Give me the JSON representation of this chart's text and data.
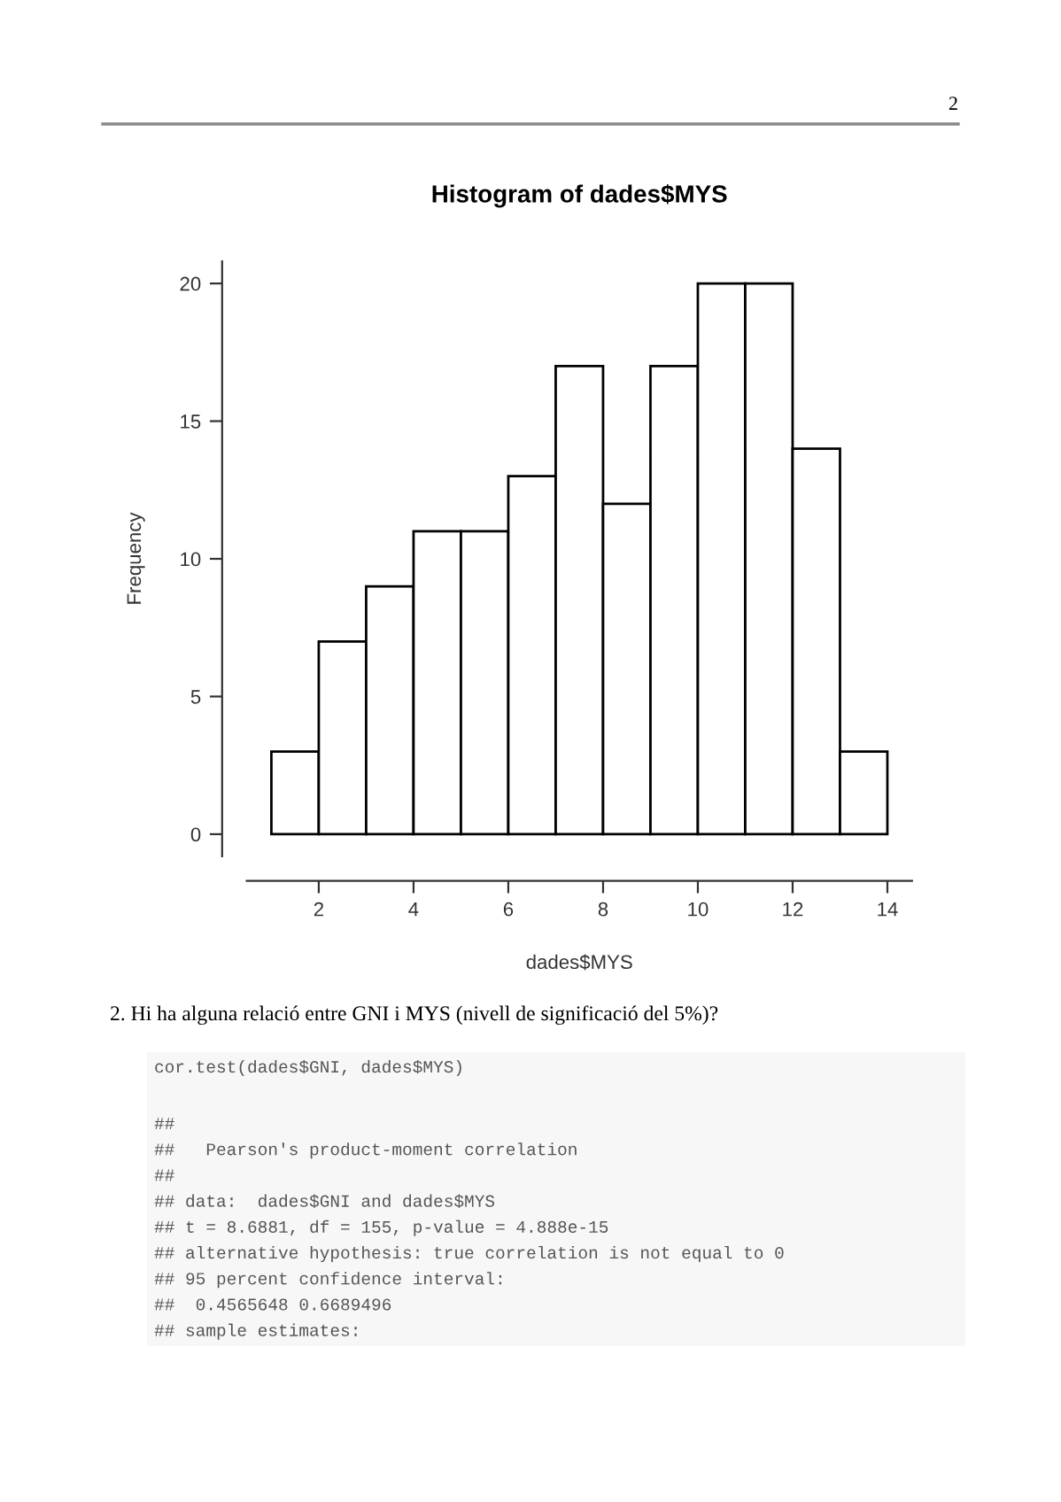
{
  "chart_data": {
    "type": "histogram",
    "title": "Histogram of dades$MYS",
    "xlabel": "dades$MYS",
    "ylabel": "Frequency",
    "bins": [
      1,
      2,
      3,
      4,
      5,
      6,
      7,
      8,
      9,
      10,
      11,
      12,
      13,
      14
    ],
    "values": [
      3,
      7,
      9,
      11,
      11,
      13,
      17,
      12,
      17,
      20,
      20,
      14,
      3
    ],
    "color": "#ffffff",
    "xlim": [
      0.48,
      14.52
    ],
    "ylim": [
      -0.8,
      20.8
    ],
    "xticks": [
      2,
      4,
      6,
      8,
      10,
      12,
      14
    ],
    "yticks": [
      0,
      5,
      10,
      15,
      20
    ],
    "grid": false,
    "annotations": [
      "2",
      "2. Hi ha alguna relació entre GNI i MYS (nivell de significació del 5%)?",
      "cor.test(dades$GNI, dades$MYS)",
      "##",
      "##   Pearson's product-moment correlation",
      "##",
      "## data:  dades$GNI and dades$MYS",
      "## t = 8.6881, df = 155, p-value = 4.888e-15",
      "## alternative hypothesis: true correlation is not equal to 0",
      "## 95 percent confidence interval:",
      "##  0.4565648 0.6689496",
      "## sample estimates:"
    ]
  }
}
